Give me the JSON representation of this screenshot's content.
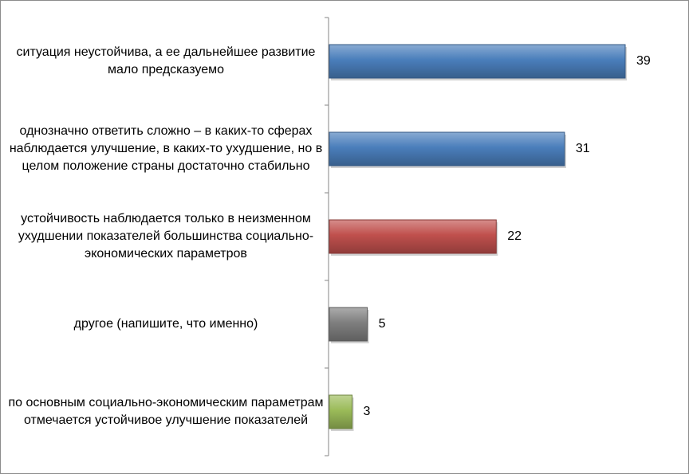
{
  "chart_data": {
    "type": "bar",
    "orientation": "horizontal",
    "categories": [
      "ситуация неустойчива, а ее дальнейшее развитие мало предсказуемо",
      "однозначно ответить сложно – в каких-то сферах наблюдается улучшение, в каких-то ухудшение, но в целом положение страны достаточно стабильно",
      "устойчивость наблюдается только в неизменном ухудшении показателей большинства социально-экономических параметров",
      "другое (напишите, что именно)",
      "по основным социально-экономическим параметрам отмечается устойчивое улучшение показателей"
    ],
    "values": [
      39,
      31,
      22,
      5,
      3
    ],
    "value_labels": [
      "39",
      "31",
      "22",
      "5",
      "3"
    ],
    "colors": [
      "#4a7ebb",
      "#4a7ebb",
      "#c0504d",
      "#7f7f7f",
      "#9bbb59"
    ],
    "xlim": [
      0,
      40
    ],
    "grid": false,
    "legend": "none"
  }
}
